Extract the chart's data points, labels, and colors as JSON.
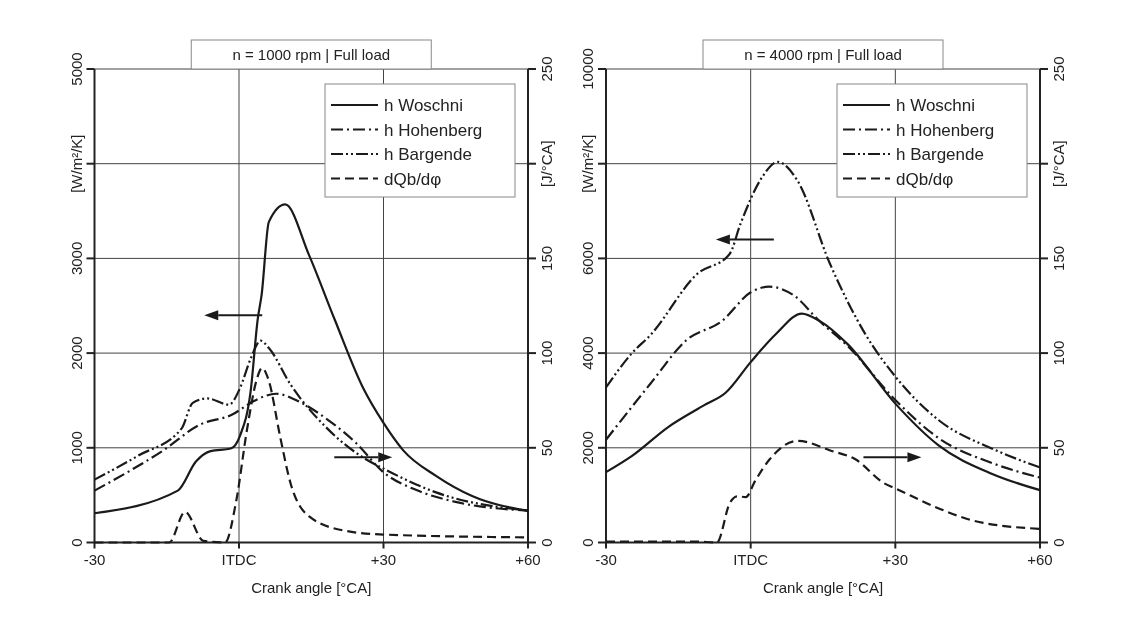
{
  "chart_data": [
    {
      "type": "line",
      "title": "n = 1000 rpm | Full load",
      "xlabel": "Crank angle [°CA]",
      "ylabel": "[W/m²/K]",
      "y2label": "[J/°CA]",
      "xlim": [
        -30,
        60
      ],
      "xticks": [
        {
          "value": -30,
          "label": "-30"
        },
        {
          "value": 0,
          "label": "ITDC"
        },
        {
          "value": 30,
          "label": "+30"
        },
        {
          "value": 60,
          "label": "+60"
        }
      ],
      "ylim": [
        0,
        5000
      ],
      "yticks": [
        0,
        1000,
        2000,
        3000,
        {
          "value": 4000,
          "label": null
        },
        5000
      ],
      "y2lim": [
        0,
        250
      ],
      "y2ticks": [
        0,
        50,
        100,
        150,
        {
          "value": 200,
          "label": null
        },
        250
      ],
      "grid": true,
      "legend": "top right",
      "series": [
        {
          "name": "h Woschni",
          "color": "#1a1a1a",
          "line_style": "solid",
          "x": [
            -30,
            -12.7,
            -8.9,
            -5.9,
            -1.7,
            0.2,
            2.4,
            3.9,
            4.7,
            6.2,
            9.6,
            14.5,
            19.8,
            25.8,
            30,
            34.1,
            40.9,
            48.4,
            60
          ],
          "values": [
            309,
            548,
            857,
            965,
            992,
            1127,
            1590,
            2363,
            2618,
            3386,
            3570,
            3040,
            2363,
            1629,
            1263,
            973,
            703,
            490,
            336
          ]
        },
        {
          "name": "h Hohenberg",
          "color": "#1a1a1a",
          "line_style": "dashdot",
          "x": [
            -30,
            -23.2,
            -15.7,
            -8.2,
            -1.4,
            3.1,
            7.7,
            12.2,
            18.3,
            24.3,
            30,
            37.1,
            44.7,
            60
          ],
          "values": [
            548,
            741,
            973,
            1243,
            1351,
            1494,
            1571,
            1494,
            1301,
            1050,
            741,
            548,
            432,
            336
          ]
        },
        {
          "name": "h Bargende",
          "color": "#1a1a1a",
          "line_style": "dashdotdot",
          "x": [
            -30,
            -21,
            -11.9,
            -9.6,
            -6.6,
            -2.1,
            0.2,
            2.4,
            4.5,
            6.2,
            10.7,
            18.3,
            25.8,
            30,
            40.9,
            60
          ],
          "values": [
            664,
            915,
            1205,
            1475,
            1521,
            1456,
            1629,
            1938,
            2131,
            2054,
            1668,
            1205,
            896,
            780,
            529,
            336
          ]
        },
        {
          "name": "dQb/dφ",
          "color": "#1a1a1a",
          "line_style": "dashed",
          "axis": "y2",
          "x": [
            -30,
            -14.5,
            -11.2,
            -7.4,
            -2.9,
            -0.6,
            1.7,
            3.6,
            4.8,
            6.2,
            8.5,
            10.7,
            14.5,
            22,
            30,
            60
          ],
          "values": [
            0,
            0,
            16.2,
            0.9,
            0,
            21.6,
            60.2,
            85.3,
            92.1,
            85.3,
            56.4,
            31.3,
            13.9,
            6.2,
            4.2,
            2.7
          ]
        }
      ]
    },
    {
      "type": "line",
      "title": "n = 4000 rpm | Full load",
      "xlabel": "Crank angle [°CA]",
      "ylabel": "[W/m²/K]",
      "y2label": "[J/°CA]",
      "xlim": [
        -30,
        60
      ],
      "xticks": [
        {
          "value": -30,
          "label": "-30"
        },
        {
          "value": 0,
          "label": "ITDC"
        },
        {
          "value": 30,
          "label": "+30"
        },
        {
          "value": 60,
          "label": "+60"
        }
      ],
      "ylim": [
        0,
        10000
      ],
      "yticks": [
        0,
        2000,
        4000,
        6000,
        {
          "value": 8000,
          "label": null
        },
        10000
      ],
      "y2lim": [
        0,
        250
      ],
      "y2ticks": [
        0,
        50,
        100,
        150,
        {
          "value": 200,
          "label": null
        },
        250
      ],
      "grid": true,
      "legend": "top right",
      "series": [
        {
          "name": "h Woschni",
          "color": "#1a1a1a",
          "line_style": "solid",
          "x": [
            -30,
            -24.6,
            -17.1,
            -9.7,
            -5.2,
            0,
            5.4,
            10.6,
            14.2,
            20.1,
            30,
            38.9,
            50.1,
            60
          ],
          "values": [
            1486,
            1829,
            2438,
            2895,
            3162,
            3810,
            4419,
            4835,
            4686,
            4190,
            2933,
            2057,
            1448,
            1105
          ]
        },
        {
          "name": "h Hohenberg",
          "color": "#1a1a1a",
          "line_style": "dashdot",
          "x": [
            -30,
            -20.8,
            -13.4,
            -5.9,
            0.1,
            3.8,
            9,
            14.2,
            20.1,
            30,
            38.9,
            50.1,
            60
          ],
          "values": [
            2171,
            3352,
            4267,
            4683,
            5290,
            5404,
            5214,
            4683,
            4152,
            3010,
            2210,
            1676,
            1371
          ]
        },
        {
          "name": "h Bargende",
          "color": "#1a1a1a",
          "line_style": "dashdotdot",
          "x": [
            -30,
            -24.6,
            -20.8,
            -11.1,
            -4.4,
            -2.1,
            2.4,
            5.6,
            9.7,
            16.4,
            23.9,
            30,
            38.9,
            50.1,
            60
          ],
          "values": [
            3276,
            4000,
            4380,
            5670,
            6087,
            6732,
            7719,
            8038,
            7643,
            5897,
            4380,
            3505,
            2590,
            1981,
            1585
          ]
        },
        {
          "name": "dQb/dφ",
          "color": "#1a1a1a",
          "line_style": "dashed",
          "axis": "y2",
          "x": [
            -30,
            -11.4,
            -7,
            -4.3,
            -2.8,
            -1,
            0.9,
            3.9,
            9.8,
            16.5,
            21.8,
            27.6,
            30,
            38.9,
            46.4,
            60
          ],
          "values": [
            0.5,
            0.5,
            0,
            21,
            24.4,
            24,
            32.4,
            43.8,
            53.7,
            48.6,
            43.8,
            31.4,
            28.6,
            18.1,
            11.4,
            7.2
          ]
        }
      ]
    }
  ]
}
